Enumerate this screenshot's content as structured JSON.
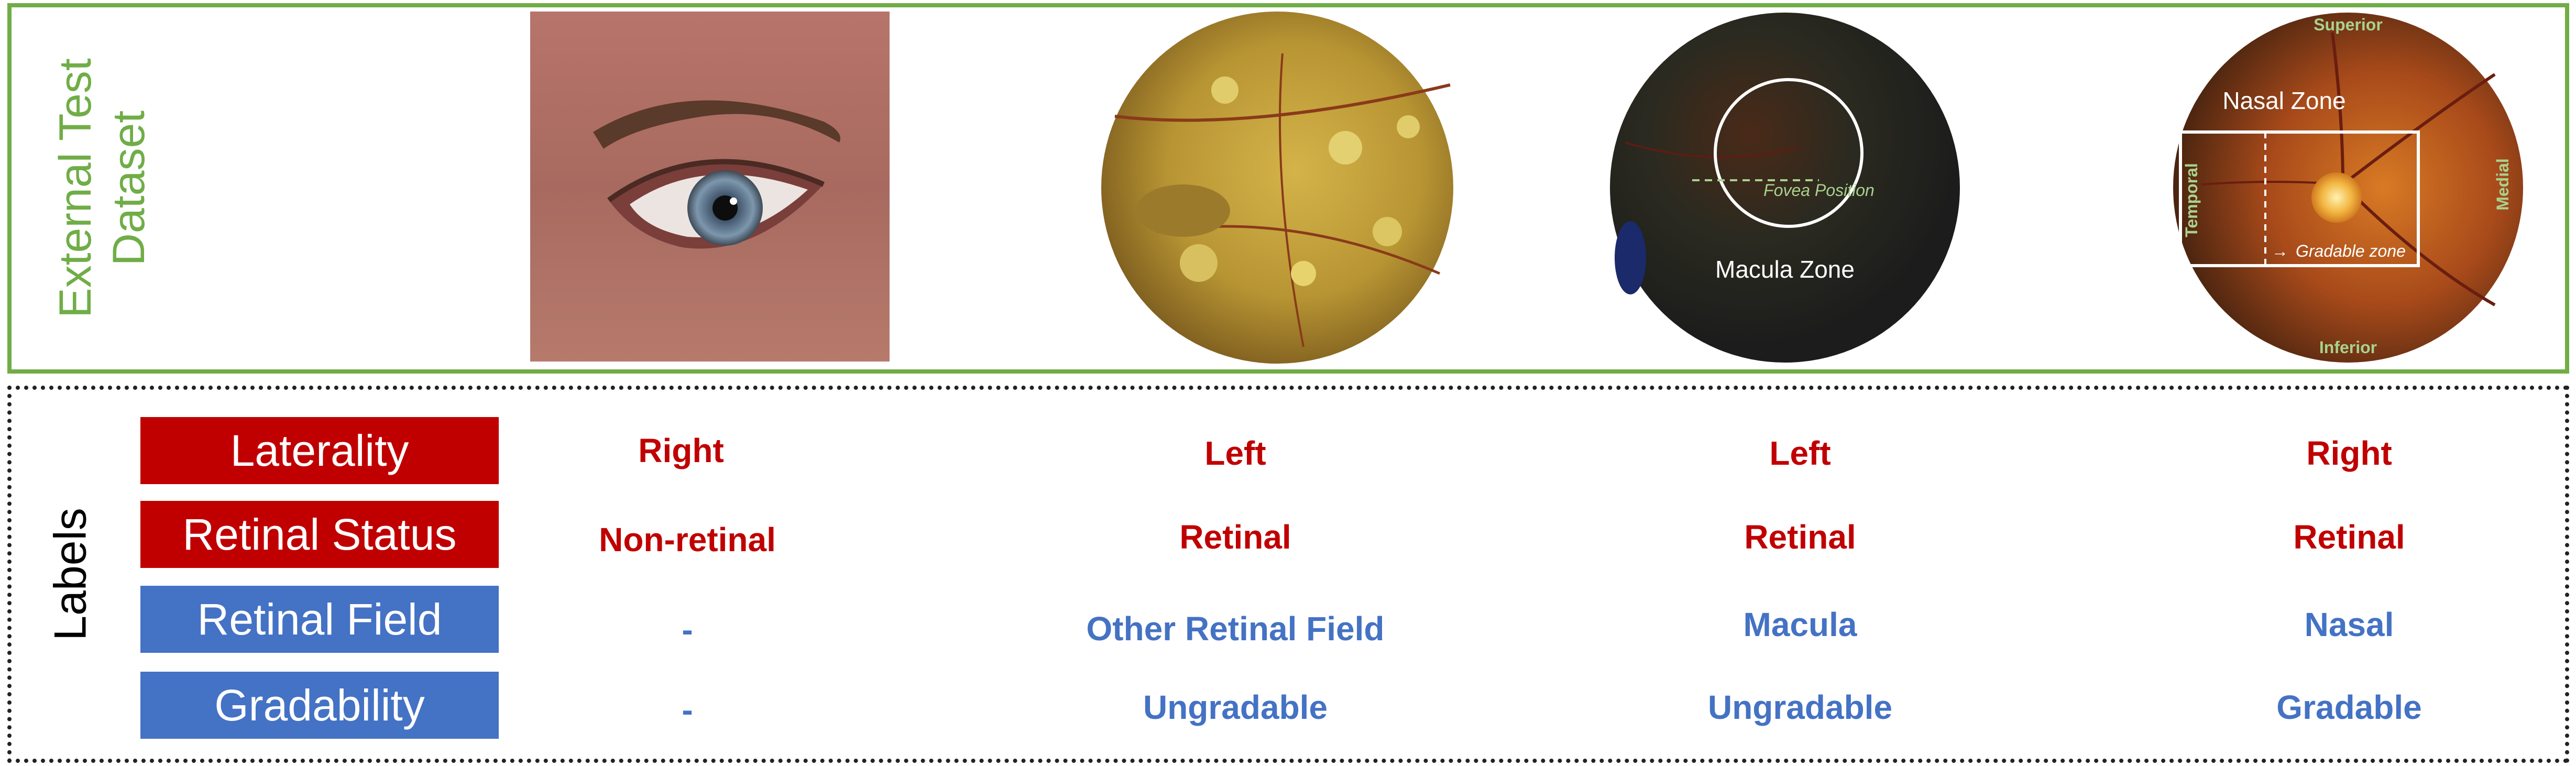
{
  "top_panel": {
    "title": "External Test Dataset",
    "overlays": {
      "fovea_position": "Fovea Position",
      "macula_zone": "Macula Zone",
      "nasal_zone": "Nasal Zone",
      "gradable_zone": "Gradable zone",
      "superior": "Superior",
      "inferior": "Inferior",
      "temporal": "Temporal",
      "medial": "Medial"
    }
  },
  "bottom_panel": {
    "title": "Labels",
    "row_labels": [
      "Laterality",
      "Retinal Status",
      "Retinal Field",
      "Gradability"
    ],
    "columns": [
      {
        "laterality": "Right",
        "retinal_status": "Non-retinal",
        "retinal_field": "-",
        "gradability": "-"
      },
      {
        "laterality": "Left",
        "retinal_status": "Retinal",
        "retinal_field": "Other Retinal Field",
        "gradability": "Ungradable"
      },
      {
        "laterality": "Left",
        "retinal_status": "Retinal",
        "retinal_field": "Macula",
        "gradability": "Ungradable"
      },
      {
        "laterality": "Right",
        "retinal_status": "Retinal",
        "retinal_field": "Nasal",
        "gradability": "Gradable"
      }
    ]
  },
  "colors": {
    "green": "#70ad47",
    "red": "#c00000",
    "blue": "#4472c4",
    "overlay_green": "#a9d18e"
  }
}
